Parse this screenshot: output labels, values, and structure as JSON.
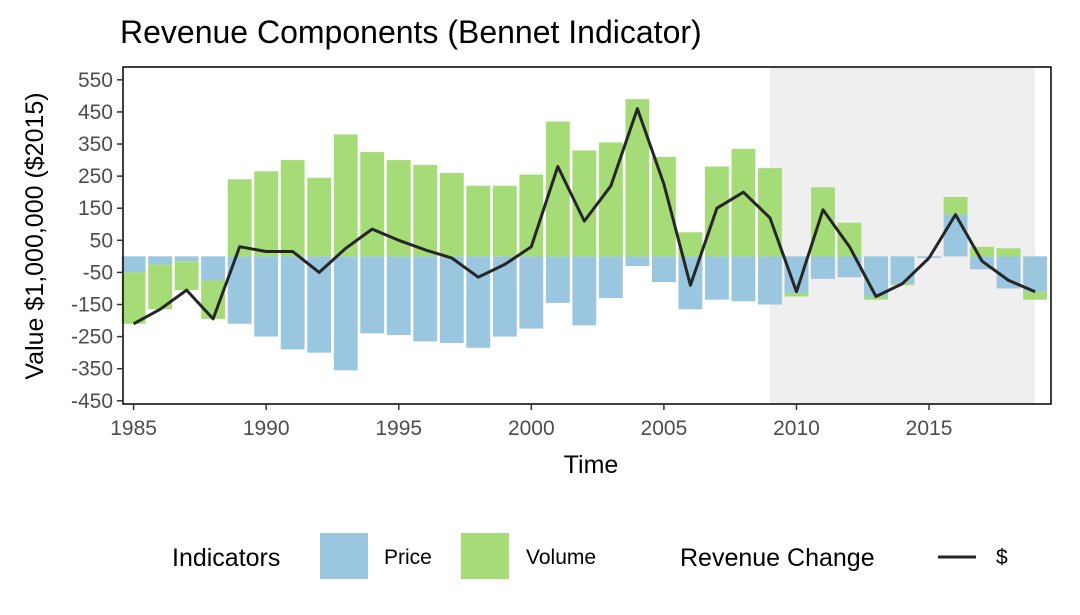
{
  "chart_data": {
    "type": "bar",
    "title": "Revenue Components (Bennet Indicator)",
    "xlabel": "Time",
    "ylabel": "Value $1,000,000 ($2015)",
    "xlim": [
      1984.6,
      2019.6
    ],
    "ylim": [
      -460,
      590
    ],
    "xticks": [
      1985,
      1990,
      1995,
      2000,
      2005,
      2010,
      2015
    ],
    "yticks": [
      -450,
      -350,
      -250,
      -150,
      -50,
      50,
      150,
      250,
      350,
      450,
      550
    ],
    "shaded_region": {
      "from": 2009,
      "to": 2019,
      "color": "#efefef"
    },
    "categories": [
      1985,
      1986,
      1987,
      1988,
      1989,
      1990,
      1991,
      1992,
      1993,
      1994,
      1995,
      1996,
      1997,
      1998,
      1999,
      2000,
      2001,
      2002,
      2003,
      2004,
      2005,
      2006,
      2007,
      2008,
      2009,
      2010,
      2011,
      2012,
      2013,
      2014,
      2015,
      2016,
      2017,
      2018,
      2019
    ],
    "series": [
      {
        "name": "Price",
        "color": "#9ac6df",
        "values": [
          -50,
          -25,
          -15,
          -75,
          -210,
          -250,
          -290,
          -300,
          -355,
          -240,
          -245,
          -265,
          -270,
          -285,
          -250,
          -225,
          -145,
          -215,
          -130,
          -30,
          -80,
          -165,
          -135,
          -140,
          -150,
          -115,
          -70,
          -65,
          -125,
          -85,
          -5,
          130,
          -40,
          -100,
          -110
        ]
      },
      {
        "name": "Volume",
        "color": "#a6dc77",
        "values": [
          -160,
          -140,
          -90,
          -120,
          240,
          265,
          300,
          245,
          380,
          325,
          300,
          285,
          260,
          220,
          220,
          255,
          420,
          330,
          355,
          490,
          310,
          75,
          280,
          335,
          275,
          -10,
          215,
          105,
          -10,
          -5,
          0,
          55,
          30,
          25,
          -25
        ]
      }
    ],
    "line": {
      "name": "$",
      "color": "#262626",
      "values": [
        -210,
        -165,
        -105,
        -195,
        30,
        15,
        15,
        -50,
        25,
        85,
        50,
        20,
        -5,
        -65,
        -25,
        30,
        280,
        110,
        220,
        460,
        225,
        -90,
        150,
        200,
        120,
        -110,
        145,
        30,
        -125,
        -85,
        -5,
        130,
        -15,
        -75,
        -110
      ]
    },
    "legend": {
      "position": "bottom",
      "indicators_title": "Indicators",
      "revenue_title": "Revenue Change",
      "line_label": "$"
    }
  }
}
